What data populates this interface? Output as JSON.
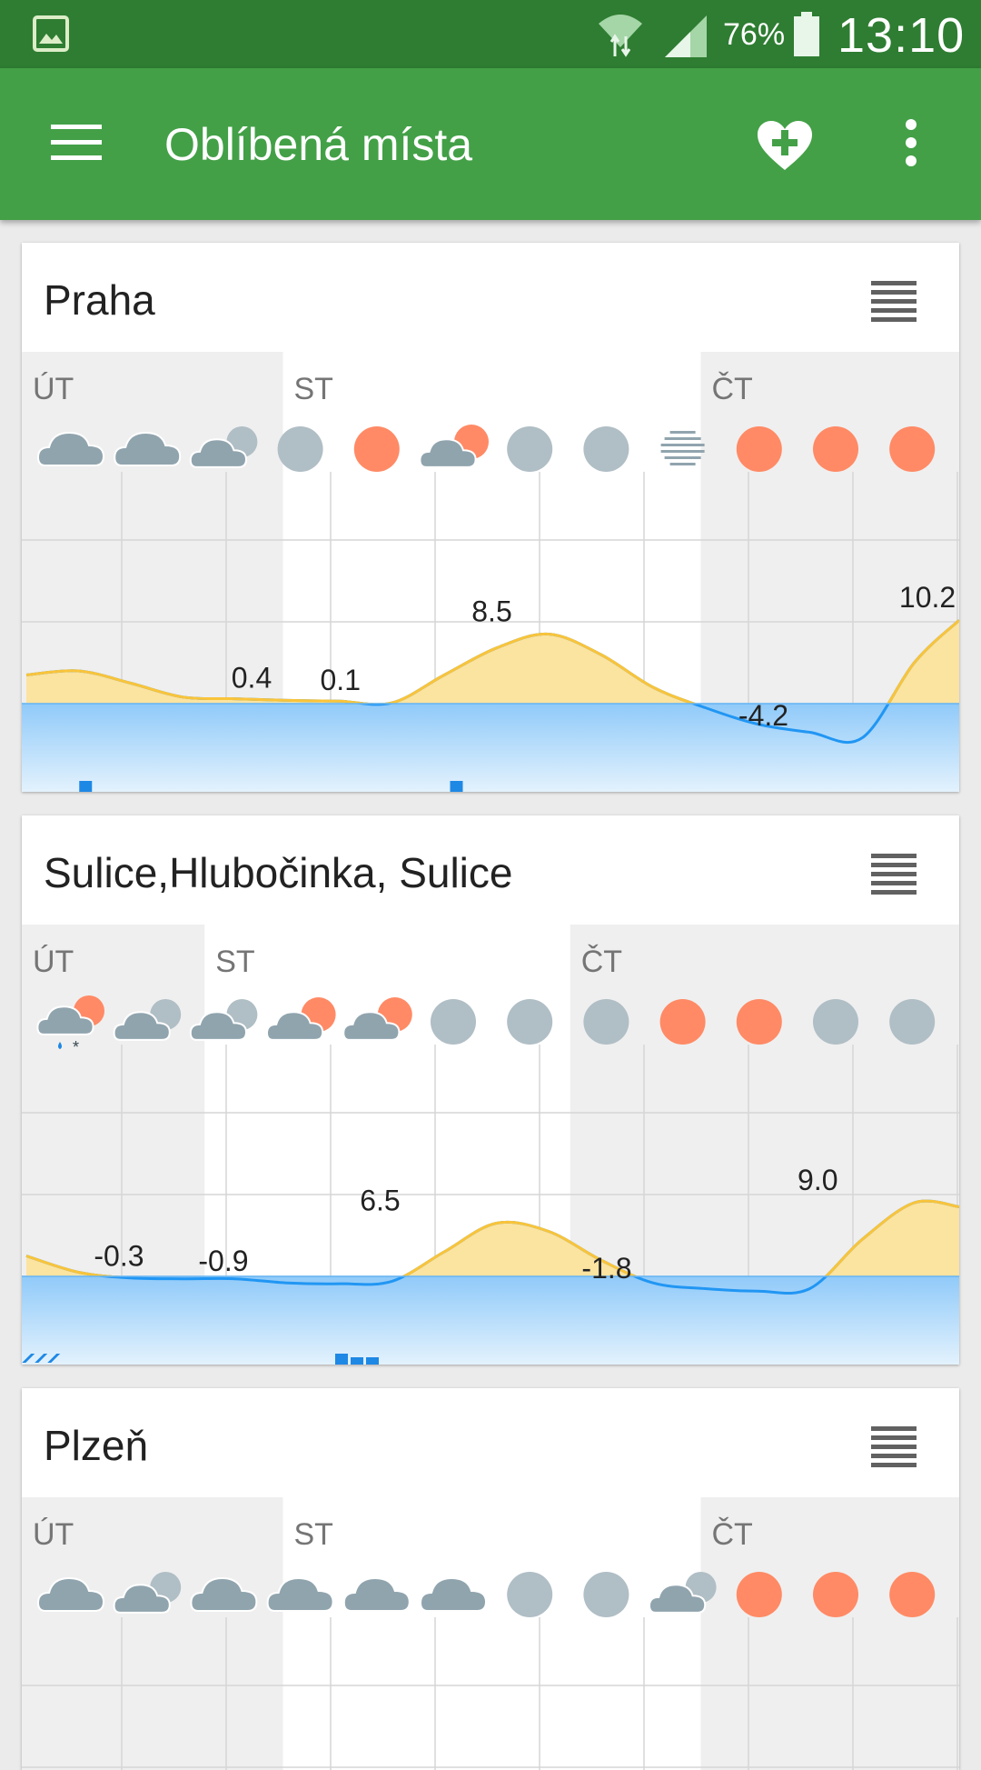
{
  "status_bar": {
    "battery_percent": "76%",
    "time": "13:10"
  },
  "app_bar": {
    "title": "Oblíbená místa",
    "icons": [
      "menu-icon",
      "heart-plus-icon",
      "overflow-menu-icon"
    ]
  },
  "colors": {
    "status_bar": "#2e7d32",
    "app_bar": "#43a047",
    "temp_above_zero": "#f9c43a",
    "temp_below_zero": "#2196f3",
    "sun": "#ff8a65",
    "cloud": "#90a4ae",
    "overcast": "#b0bec5"
  },
  "locations": [
    {
      "name": "Praha",
      "days": [
        "ÚT",
        "ST",
        "ČT"
      ],
      "day_start_cols": [
        0,
        2.5,
        6.5
      ],
      "shaded_days": [
        0,
        2
      ],
      "chart_data": {
        "type": "area",
        "unit": "°C",
        "zero_line": 0,
        "x_cols": [
          0,
          0.5,
          1,
          1.5,
          2,
          2.5,
          3,
          3.5,
          4,
          4.5,
          5,
          5.5,
          6,
          6.5,
          7,
          7.5,
          8,
          8.5,
          9
        ],
        "temperatures": [
          3.5,
          4.0,
          2.5,
          0.8,
          0.6,
          0.4,
          0.3,
          0.1,
          3.5,
          6.8,
          8.5,
          6.0,
          2.0,
          -0.5,
          -2.5,
          -3.5,
          -4.2,
          5.0,
          10.2
        ],
        "labels": [
          {
            "col": 2.2,
            "text": "0.4"
          },
          {
            "col": 3.05,
            "text": "0.1"
          },
          {
            "col": 4.5,
            "text": "8.5"
          },
          {
            "col": 7.1,
            "text": "-4.2"
          },
          {
            "col": 8.67,
            "text": "10.2"
          }
        ],
        "precipitation": [
          {
            "col": 0.55,
            "kind": "rain"
          },
          {
            "col": 4.1,
            "kind": "rain"
          }
        ],
        "icons": [
          "cloud",
          "cloud",
          "partly-cloudy",
          "overcast",
          "sun",
          "sun-cloud",
          "overcast",
          "overcast",
          "fog",
          "sun",
          "sun",
          "sun"
        ]
      }
    },
    {
      "name": "Sulice,Hlubočinka, Sulice",
      "days": [
        "ÚT",
        "ST",
        "ČT"
      ],
      "day_start_cols": [
        0,
        1.75,
        5.25
      ],
      "shaded_days": [
        0,
        2
      ],
      "chart_data": {
        "type": "area",
        "unit": "°C",
        "zero_line": 0,
        "x_cols": [
          0,
          0.5,
          1,
          1.5,
          2,
          2.5,
          3,
          3.5,
          4,
          4.5,
          5,
          5.5,
          6,
          6.5,
          7,
          7.5,
          8,
          8.5,
          9
        ],
        "temperatures": [
          2.5,
          0.5,
          -0.2,
          -0.3,
          -0.3,
          -0.8,
          -0.9,
          -0.6,
          3.0,
          6.5,
          5.5,
          2.0,
          -0.8,
          -1.5,
          -1.8,
          -1.5,
          4.5,
          9.0,
          8.5
        ],
        "labels": [
          {
            "col": 0.93,
            "text": "-0.3"
          },
          {
            "col": 1.93,
            "text": "-0.9"
          },
          {
            "col": 3.43,
            "text": "6.5"
          },
          {
            "col": 5.6,
            "text": "-1.8"
          },
          {
            "col": 7.62,
            "text": "9.0"
          }
        ],
        "precipitation": [
          {
            "col": 0.35,
            "kind": "snow"
          },
          {
            "col": 3.0,
            "kind": "rain"
          }
        ],
        "icons": [
          "sun-cloud-rain-snow",
          "partly-cloudy",
          "partly-cloudy",
          "sun-cloud",
          "sun-cloud",
          "overcast",
          "overcast",
          "overcast",
          "sun",
          "sun",
          "overcast",
          "overcast"
        ]
      }
    },
    {
      "name": "Plzeň",
      "days": [
        "ÚT",
        "ST",
        "ČT"
      ],
      "day_start_cols": [
        0,
        2.5,
        6.5
      ],
      "shaded_days": [
        0,
        2
      ],
      "icons": [
        "cloud",
        "partly-cloudy",
        "cloud",
        "cloud",
        "cloud",
        "cloud",
        "overcast",
        "overcast",
        "partly-cloudy",
        "sun",
        "sun",
        "sun"
      ]
    }
  ]
}
